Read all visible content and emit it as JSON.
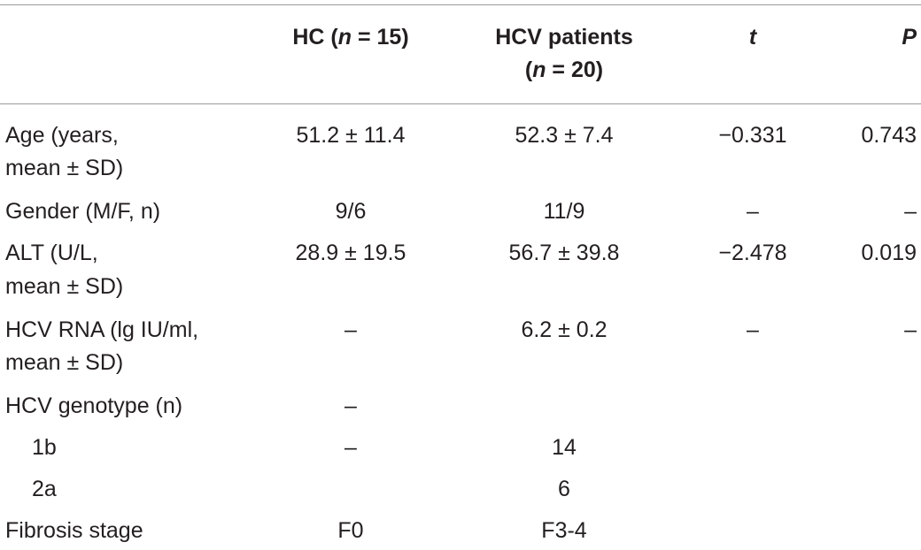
{
  "header": {
    "hc_prefix": "HC (",
    "hc_n": "n",
    "hc_suffix": " = 15)",
    "hcv_line1": "HCV patients",
    "hcv_prefix": "(",
    "hcv_n": "n",
    "hcv_suffix": " = 20)",
    "t": "t",
    "p": "P"
  },
  "rows": [
    {
      "label": [
        "Age (years,",
        "mean ± SD)"
      ],
      "hc": "51.2 ± 11.4",
      "hcv": "52.3 ± 7.4",
      "t": "−0.331",
      "p": "0.743"
    },
    {
      "label": [
        "Gender (M/F, n)"
      ],
      "hc": "9/6",
      "hcv": "11/9",
      "t": "–",
      "p": "–"
    },
    {
      "label": [
        "ALT (U/L,",
        "mean ± SD)"
      ],
      "hc": "28.9 ± 19.5",
      "hcv": "56.7 ± 39.8",
      "t": "−2.478",
      "p": "0.019"
    },
    {
      "label": [
        "HCV RNA (lg IU/ml,",
        "mean ± SD)"
      ],
      "hc": "–",
      "hcv": "6.2 ± 0.2",
      "t": "–",
      "p": "–"
    },
    {
      "label": [
        "HCV genotype (n)"
      ],
      "hc": "–",
      "hcv": "",
      "t": "",
      "p": ""
    },
    {
      "label": [
        "1b"
      ],
      "hc": "–",
      "hcv": "14",
      "t": "",
      "p": ""
    },
    {
      "label": [
        "2a"
      ],
      "hc": "",
      "hcv": "6",
      "t": "",
      "p": ""
    },
    {
      "label": [
        "Fibrosis stage"
      ],
      "hc": "F0",
      "hcv": "F3-4",
      "t": "",
      "p": ""
    }
  ]
}
